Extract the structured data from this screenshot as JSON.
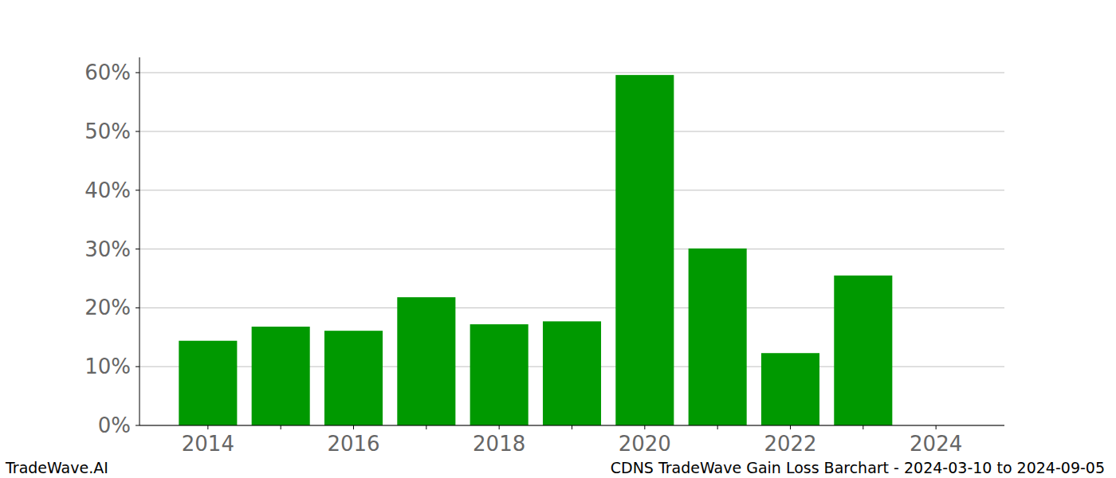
{
  "chart_data": {
    "type": "bar",
    "title": "CDNS TradeWave Gain Loss Barchart - 2024-03-10 to 2024-09-05",
    "annotations": [
      "TradeWave.AI"
    ],
    "categories": [
      "2014",
      null,
      "2016",
      null,
      "2018",
      null,
      "2020",
      null,
      "2022",
      null,
      "2024"
    ],
    "values": [
      14.4,
      16.8,
      16.1,
      21.8,
      17.2,
      17.7,
      59.6,
      30.1,
      12.3,
      25.5,
      0
    ],
    "color": "#009900",
    "ylim": [
      0,
      62.6
    ],
    "yticks": [
      {
        "value": 0,
        "label": "0%"
      },
      {
        "value": 10,
        "label": "10%"
      },
      {
        "value": 20,
        "label": "20%"
      },
      {
        "value": 30,
        "label": "30%"
      },
      {
        "value": 40,
        "label": "40%"
      },
      {
        "value": 50,
        "label": "50%"
      },
      {
        "value": 60,
        "label": "60%"
      }
    ],
    "grid": true
  }
}
